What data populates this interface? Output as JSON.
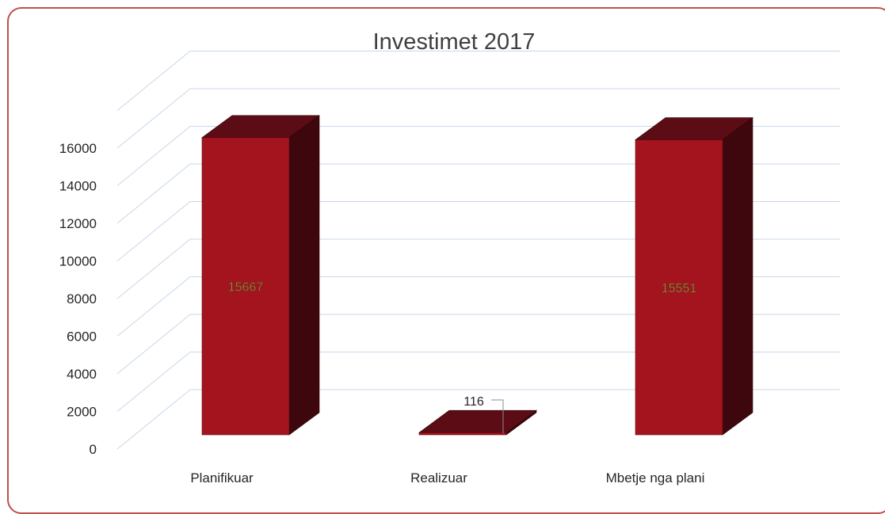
{
  "chart_data": {
    "type": "bar",
    "title": "Investimet 2017",
    "categories": [
      "Planifikuar",
      "Realizuar",
      "Mbetje nga plani"
    ],
    "values": [
      15667,
      116,
      15551
    ],
    "data_labels": [
      "15667",
      "116",
      "15551"
    ],
    "y_ticks": [
      "0",
      "2000",
      "4000",
      "6000",
      "8000",
      "10000",
      "12000",
      "14000",
      "16000"
    ],
    "ylim": [
      0,
      16000
    ],
    "xlabel": "",
    "ylabel": "",
    "grid": true,
    "legend": "none",
    "style": "3d-column",
    "colors": {
      "bar_front": "#a3141f",
      "bar_top": "#5c0c14",
      "bar_side": "#3e070d",
      "grid": "#c9d7ea",
      "frame": "#c0504d",
      "label_in_bar": "#9c8a45",
      "label_dark": "#262626"
    }
  }
}
